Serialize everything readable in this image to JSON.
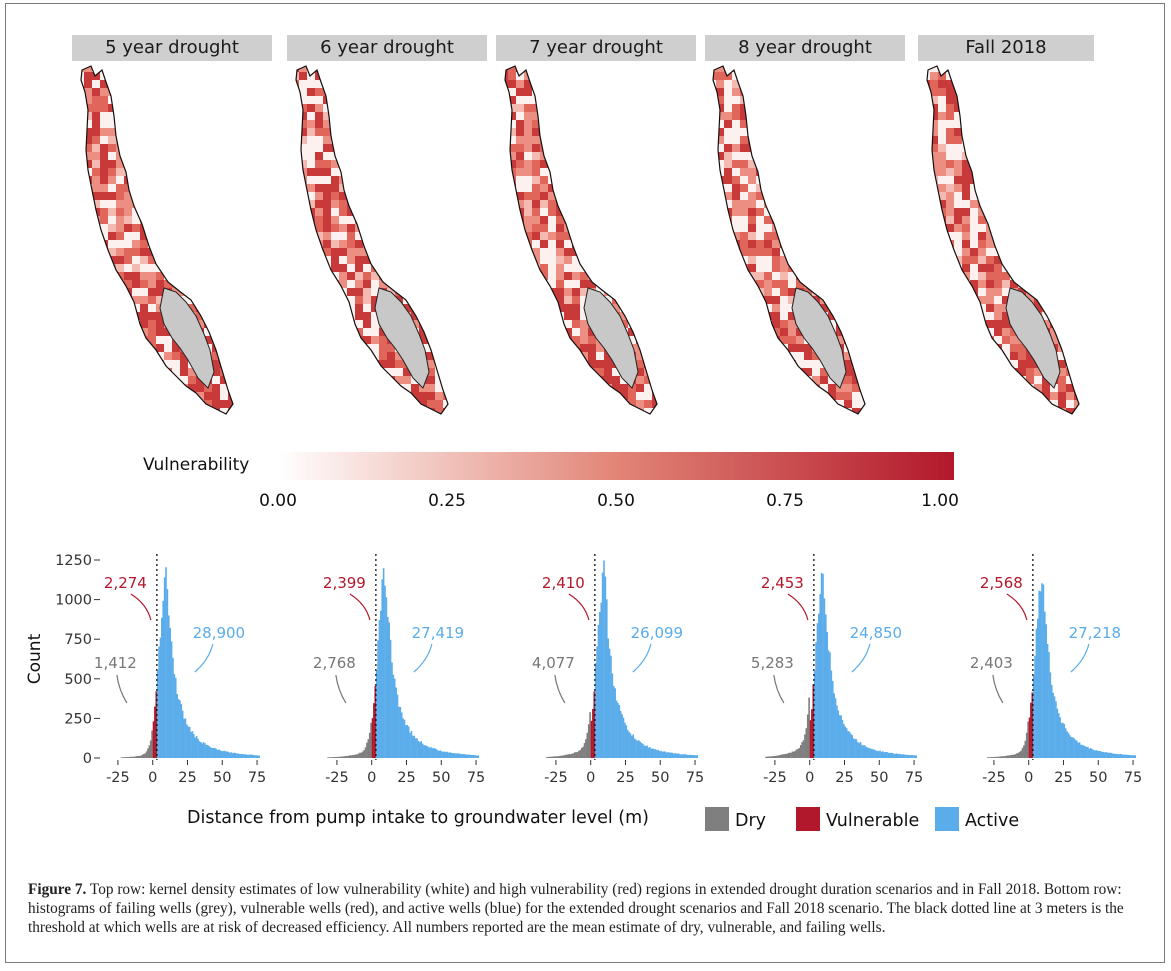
{
  "figure": {
    "caption_label": "Figure 7.",
    "caption_text": "Top row: kernel density estimates of low vulnerability (white) and high vulnerability (red) regions in extended drought duration scenarios and in Fall 2018. Bottom row: histograms of failing wells (grey), vulnerable wells (red), and active wells (blue) for the extended drought scenarios and Fall 2018 scenario. The black dotted line at 3 meters is the threshold at which wells are at risk of decreased efficiency. All numbers reported are the mean estimate of dry, vulnerable, and failing wells."
  },
  "maps": {
    "titles": [
      "5 year drought",
      "6 year drought",
      "7 year drought",
      "8 year drought",
      "Fall 2018"
    ]
  },
  "colorbar": {
    "title": "Vulnerability",
    "ticks": [
      "0.00",
      "0.25",
      "0.50",
      "0.75",
      "1.00"
    ],
    "color_low": "#ffffff",
    "color_high": "#b2182b"
  },
  "chart_data": {
    "type": "bar",
    "ylabel": "Count",
    "xlabel": "Distance from pump intake to groundwater level (m)",
    "xlim": [
      -35,
      80
    ],
    "ylim": [
      0,
      1250
    ],
    "x_ticks": [
      "-25",
      "0",
      "25",
      "50",
      "75"
    ],
    "y_ticks": [
      "0",
      "250",
      "500",
      "750",
      "1000",
      "1250"
    ],
    "threshold_m": 3,
    "colors": {
      "Dry": "#7f7f7f",
      "Vulnerable": "#b2182b",
      "Active": "#5aacea"
    },
    "legend": [
      "Dry",
      "Vulnerable",
      "Active"
    ],
    "panels": [
      {
        "scenario": "5 year drought",
        "dry": "1,412",
        "vulnerable": "2,274",
        "active": "28,900"
      },
      {
        "scenario": "6 year drought",
        "dry": "2,768",
        "vulnerable": "2,399",
        "active": "27,419"
      },
      {
        "scenario": "7 year drought",
        "dry": "4,077",
        "vulnerable": "2,410",
        "active": "26,099"
      },
      {
        "scenario": "8 year drought",
        "dry": "5,283",
        "vulnerable": "2,453",
        "active": "24,850"
      },
      {
        "scenario": "Fall 2018",
        "dry": "2,403",
        "vulnerable": "2,568",
        "active": "27,218"
      }
    ]
  }
}
